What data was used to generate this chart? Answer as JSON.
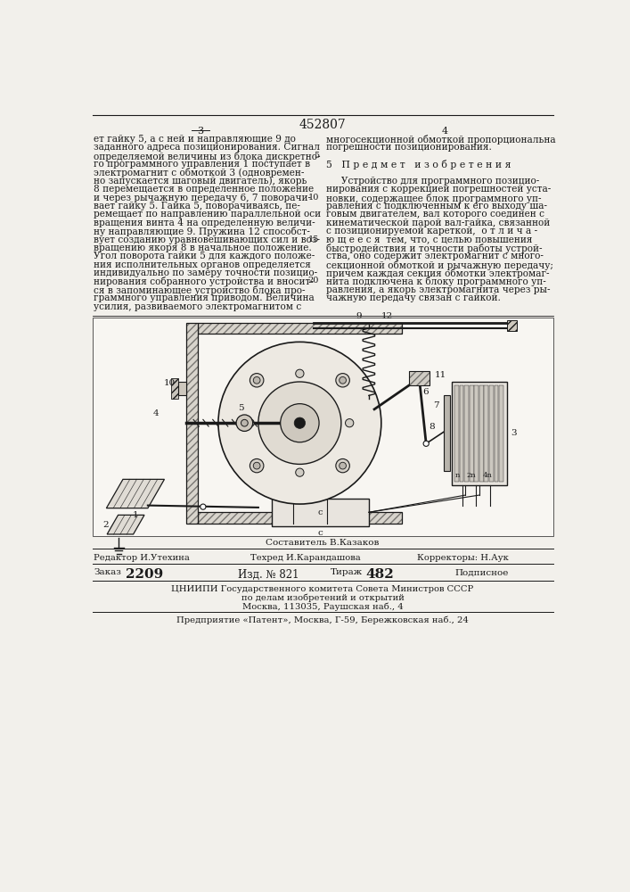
{
  "patent_number": "452807",
  "page_col_left": "3",
  "page_col_right": "4",
  "text_left_col": [
    "ет гайку 5, а с ней и направляющие 9 до",
    "заданного адреса позиционирования. Сигнал",
    "определяемой величины из блока дискретно-",
    "го программного управления 1 поступает в",
    "электромагнит с обмоткой 3 (одновремен-",
    "но запускается шаговый двигатель), якорь",
    "8 перемещается в определенное положение",
    "и через рычажную передачу 6, 7 поворачи-",
    "вает гайку 5. Гайка 5, поворачиваясь, пе-",
    "ремещает по направлению параллельной оси",
    "вращения винта 4 на определенную величи-",
    "ну направляющие 9. Пружина 12 способст-",
    "вует созданию уравновешивающих сил и воз-",
    "вращению якоря 8 в начальное положение.",
    "Угол поворота гайки 5 для каждого положе-",
    "ния исполнительных органов определяется",
    "индивидуально по замеру точности позицио-",
    "нирования собранного устройства и вносит-",
    "ся в запоминающее устройство блока про-",
    "граммного управления приводом. Величина",
    "усилия, развиваемого электромагнитом с "
  ],
  "text_right_col": [
    "многосекционной обмоткой пропорциональна",
    "погрешности позиционирования.",
    "",
    "5   П р е д м е т   и з о б р е т е н и я",
    "",
    "     Устройство для программного позицио-",
    "нирования с коррекцией погрешностей уста-",
    "новки, содержащее блок программного уп-",
    "равления с подключенным к его выходу ша-",
    "говым двигателем, вал которого соединен с",
    "кинематической парой вал-гайка, связанной",
    "с позиционируемой кареткой,  о т л и ч а -",
    "ю щ е е с я  тем, что, с целью повышения",
    "быстродействия и точности работы устрой-",
    "ства, оно содержит электромагнит с много-",
    "секционной обмоткой и рычажную передачу;",
    "причем каждая секция обмотки электромаг-",
    "нита подключена к блоку программного уп-",
    "равления, а якорь электромагнита через ры-",
    "чажную передачу связан с гайкой."
  ],
  "footer_sestavitel": "Составитель В.Казаков",
  "footer_editor": "Редактор И.Утехина",
  "footer_tech": "Техред И.Карандашова",
  "footer_corrector": "Корректоры: Н.Аук",
  "footer_order_label": "Заказ",
  "footer_order_num": "2209",
  "footer_izd_label": "Изд. №",
  "footer_izd_num": "821",
  "footer_tirazh_label": "Тираж",
  "footer_tirazh_num": "482",
  "footer_podpisnoe": "Подписное",
  "footer_org1": "ЦНИИПИ Государственного комитета Совета Министров СССР",
  "footer_org2": "по делам изобретений и открытий",
  "footer_org3": "Москва, 113035, Раушская наб., 4",
  "footer_org4": "Предприятие «Патент», Москва, Г-59, Бережковская наб., 24",
  "bg_color": "#f2f0eb",
  "text_color": "#1a1a1a",
  "line_color": "#1a1a1a"
}
